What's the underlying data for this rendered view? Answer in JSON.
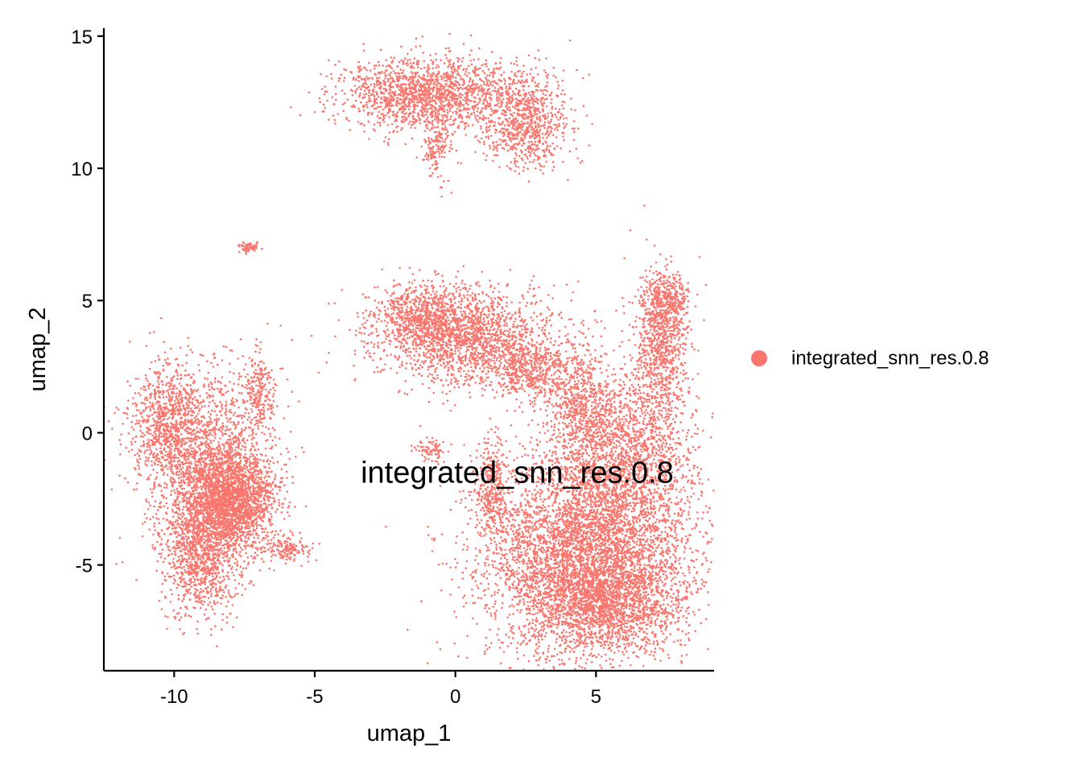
{
  "chart_data": {
    "type": "scatter",
    "xlabel": "umap_1",
    "ylabel": "umap_2",
    "xlim": [
      -12.5,
      9.2
    ],
    "ylim": [
      -9.0,
      15.3
    ],
    "x_ticks": [
      -10,
      -5,
      0,
      5
    ],
    "x_tick_labels": [
      "-10",
      "-5",
      "0",
      "5"
    ],
    "y_ticks": [
      -5,
      0,
      5,
      10,
      15
    ],
    "y_tick_labels": [
      "-5",
      "0",
      "5",
      "10",
      "15"
    ],
    "grid": false,
    "legend_position": "right",
    "point_color": "#F8766D",
    "series": [
      {
        "name": "integrated_snn_res.0.8",
        "color": "#F8766D",
        "clusters": [
          {
            "cx": 4.8,
            "cy": -4.5,
            "sx": 1.8,
            "sy": 2.0,
            "n": 5200
          },
          {
            "cx": 5.3,
            "cy": -6.5,
            "sx": 1.4,
            "sy": 0.8,
            "n": 1200
          },
          {
            "cx": 6.2,
            "cy": -0.5,
            "sx": 1.2,
            "sy": 1.4,
            "n": 1300
          },
          {
            "cx": 7.3,
            "cy": 3.2,
            "sx": 0.5,
            "sy": 1.4,
            "n": 800
          },
          {
            "cx": 7.5,
            "cy": 5.0,
            "sx": 0.4,
            "sy": 0.5,
            "n": 300
          },
          {
            "cx": 4.5,
            "cy": 1.0,
            "sx": 0.6,
            "sy": 1.0,
            "n": 500
          },
          {
            "cx": 0.5,
            "cy": 3.6,
            "sx": 1.6,
            "sy": 0.9,
            "n": 1800
          },
          {
            "cx": -1.2,
            "cy": 4.5,
            "sx": 0.8,
            "sy": 0.6,
            "n": 600
          },
          {
            "cx": 2.8,
            "cy": 2.3,
            "sx": 0.8,
            "sy": 0.6,
            "n": 500
          },
          {
            "cx": 1.3,
            "cy": -2.3,
            "sx": 0.3,
            "sy": 1.0,
            "n": 350
          },
          {
            "cx": -0.8,
            "cy": -0.7,
            "sx": 0.3,
            "sy": 0.2,
            "n": 80
          },
          {
            "cx": -8.0,
            "cy": -2.5,
            "sx": 0.8,
            "sy": 0.9,
            "n": 2000
          },
          {
            "cx": -9.0,
            "cy": -4.5,
            "sx": 0.7,
            "sy": 1.2,
            "n": 1100
          },
          {
            "cx": -10.3,
            "cy": 0.5,
            "sx": 0.6,
            "sy": 1.1,
            "n": 700
          },
          {
            "cx": -7.0,
            "cy": 1.5,
            "sx": 0.25,
            "sy": 0.8,
            "n": 200
          },
          {
            "cx": -6.0,
            "cy": -4.4,
            "sx": 0.5,
            "sy": 0.25,
            "n": 150
          },
          {
            "cx": -8.8,
            "cy": -1.0,
            "sx": 1.2,
            "sy": 1.8,
            "n": 1500
          },
          {
            "cx": -1.0,
            "cy": 12.8,
            "sx": 1.5,
            "sy": 0.7,
            "n": 1600
          },
          {
            "cx": 2.5,
            "cy": 11.8,
            "sx": 0.8,
            "sy": 0.9,
            "n": 800
          },
          {
            "cx": -0.7,
            "cy": 10.8,
            "sx": 0.25,
            "sy": 0.6,
            "n": 150
          },
          {
            "cx": -7.3,
            "cy": 7.0,
            "sx": 0.2,
            "sy": 0.12,
            "n": 60
          }
        ]
      }
    ],
    "annotations": [
      {
        "text": "integrated_snn_res.0.8",
        "x": 2.2,
        "y": -1.5
      }
    ]
  }
}
